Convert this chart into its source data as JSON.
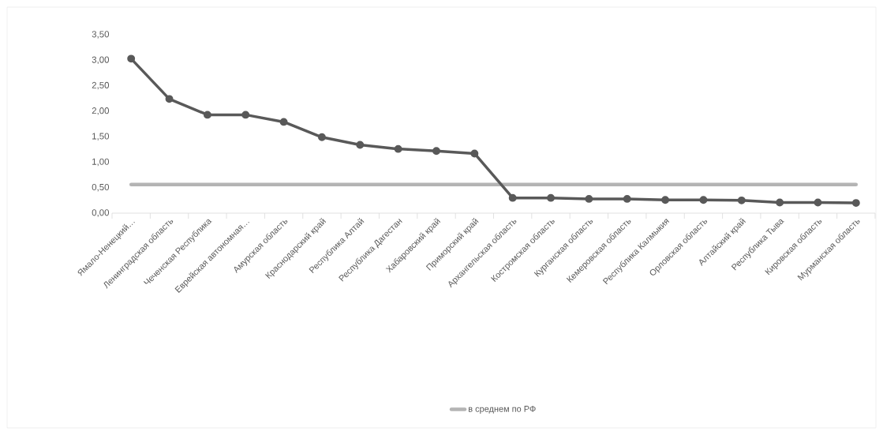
{
  "chart_data": {
    "type": "line",
    "legend": "bottom",
    "categories": [
      "Ямало-Ненецкий…",
      "Ленинградская область",
      "Чеченская Республика",
      "Еврейская автономная…",
      "Амурская область",
      "Краснодарский край",
      "Республика Алтай",
      "Республика Дагестан",
      "Хабаровский край",
      "Приморский край",
      "Архангельская область",
      "Костромская область",
      "Курганская область",
      "Кемеровская область",
      "Республика Калмыкия",
      "Орловская область",
      "Алтайский край",
      "Республика Тыва",
      "Кировская область",
      "Мурманская область"
    ],
    "ylim": [
      0,
      3.5
    ],
    "yticks": [
      {
        "value": 0,
        "label": "0,00"
      },
      {
        "value": 0.5,
        "label": "0,50"
      },
      {
        "value": 1,
        "label": "1,00"
      },
      {
        "value": 1.5,
        "label": "1,50"
      },
      {
        "value": 2,
        "label": "2,00"
      },
      {
        "value": 2.5,
        "label": "2,50"
      },
      {
        "value": 3,
        "label": "3,00"
      },
      {
        "value": 3.5,
        "label": "3,50"
      }
    ],
    "series": [
      {
        "color": "#595959",
        "marker": "circle",
        "line_style": "solid",
        "values": [
          3.03,
          2.24,
          1.93,
          1.93,
          1.79,
          1.49,
          1.34,
          1.26,
          1.22,
          1.17,
          0.3,
          0.3,
          0.28,
          0.28,
          0.26,
          0.26,
          0.25,
          0.21,
          0.21,
          0.2
        ]
      },
      {
        "name": "в среднем по РФ",
        "color": "#b4b4b4",
        "marker": "none",
        "line_style": "solid",
        "values": [
          0.56,
          0.56,
          0.56,
          0.56,
          0.56,
          0.56,
          0.56,
          0.56,
          0.56,
          0.56,
          0.56,
          0.56,
          0.56,
          0.56,
          0.56,
          0.56,
          0.56,
          0.56,
          0.56,
          0.56
        ]
      }
    ]
  }
}
